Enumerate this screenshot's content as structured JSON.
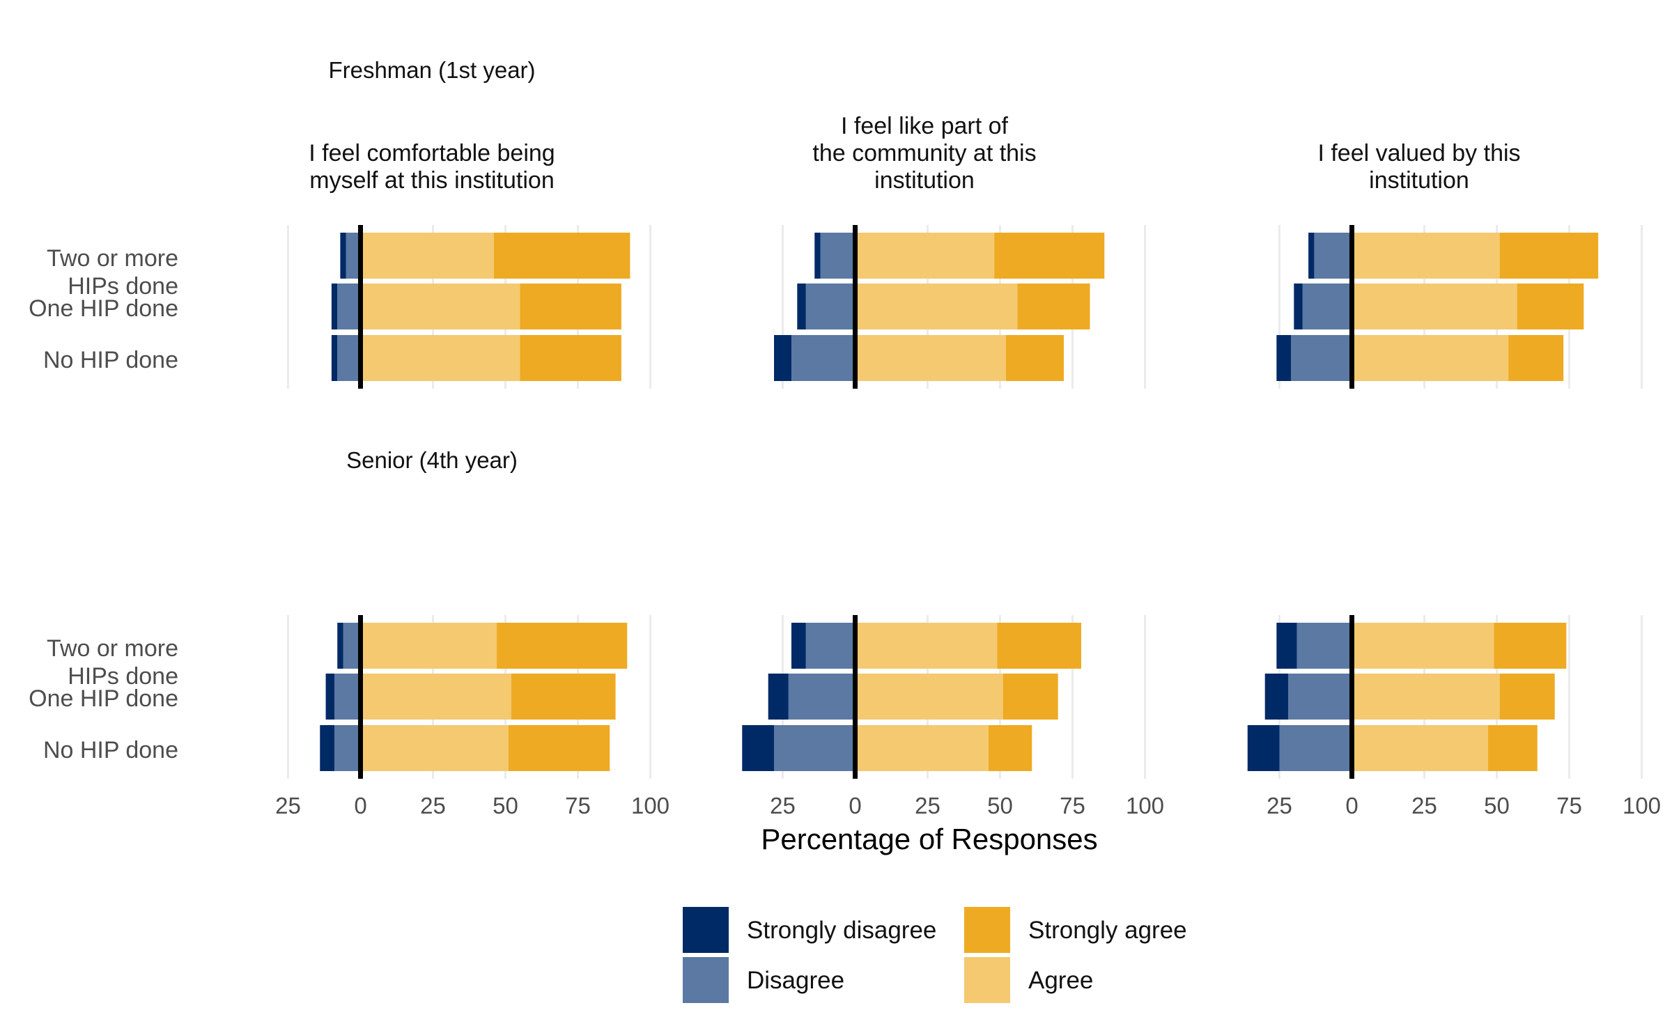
{
  "chart_data": {
    "type": "bar",
    "orientation": "horizontal-diverging",
    "xlabel": "Percentage of Responses",
    "colors": {
      "Strongly disagree": "#002a66",
      "Disagree": "#5b79a2",
      "Agree": "#f4c970",
      "Strongly agree": "#eeaa22"
    },
    "legend": {
      "position": "bottom",
      "entries": [
        "Strongly disagree",
        "Disagree",
        "Strongly agree",
        "Agree"
      ]
    },
    "categories": [
      "Two or more HIPs done",
      "One HIP done",
      "No HIP done"
    ],
    "category_lines": [
      [
        "Two or more",
        "HIPs done"
      ],
      [
        "One HIP done"
      ],
      [
        "No HIP done"
      ]
    ],
    "rows": [
      "Freshman (1st year)",
      "Senior (4th year)"
    ],
    "columns": [
      [
        "I feel comfortable being",
        "myself at this institution"
      ],
      [
        "I feel like part of",
        "the community at this",
        "institution"
      ],
      [
        "I feel valued by this",
        "institution"
      ]
    ],
    "xlim": [
      -25,
      100
    ],
    "grid": true,
    "panels": [
      {
        "row": 0,
        "col": 0,
        "xticks": [
          "25",
          "0",
          "25",
          "50",
          "75",
          "100"
        ],
        "xtick_values": [
          -25,
          0,
          25,
          50,
          75,
          100
        ],
        "data": [
          {
            "strongly_disagree": 2,
            "disagree": 5,
            "agree": 46,
            "strongly_agree": 47
          },
          {
            "strongly_disagree": 2,
            "disagree": 8,
            "agree": 55,
            "strongly_agree": 35
          },
          {
            "strongly_disagree": 2,
            "disagree": 8,
            "agree": 55,
            "strongly_agree": 35
          }
        ]
      },
      {
        "row": 0,
        "col": 1,
        "xticks": [
          "25",
          "0",
          "25",
          "50",
          "75",
          "100"
        ],
        "xtick_values": [
          -25,
          0,
          25,
          50,
          75,
          100
        ],
        "data": [
          {
            "strongly_disagree": 2,
            "disagree": 12,
            "agree": 48,
            "strongly_agree": 38
          },
          {
            "strongly_disagree": 3,
            "disagree": 17,
            "agree": 56,
            "strongly_agree": 25
          },
          {
            "strongly_disagree": 6,
            "disagree": 22,
            "agree": 52,
            "strongly_agree": 20
          }
        ]
      },
      {
        "row": 0,
        "col": 2,
        "xticks": [
          "25",
          "0",
          "25",
          "50",
          "75",
          "100"
        ],
        "xtick_values": [
          -25,
          0,
          25,
          50,
          75,
          100
        ],
        "data": [
          {
            "strongly_disagree": 2,
            "disagree": 13,
            "agree": 51,
            "strongly_agree": 34
          },
          {
            "strongly_disagree": 3,
            "disagree": 17,
            "agree": 57,
            "strongly_agree": 23
          },
          {
            "strongly_disagree": 5,
            "disagree": 21,
            "agree": 54,
            "strongly_agree": 19
          }
        ]
      },
      {
        "row": 1,
        "col": 0,
        "xticks": [
          "25",
          "0",
          "25",
          "50",
          "75",
          "100"
        ],
        "xtick_values": [
          -25,
          0,
          25,
          50,
          75,
          100
        ],
        "data": [
          {
            "strongly_disagree": 2,
            "disagree": 6,
            "agree": 47,
            "strongly_agree": 45
          },
          {
            "strongly_disagree": 3,
            "disagree": 9,
            "agree": 52,
            "strongly_agree": 36
          },
          {
            "strongly_disagree": 5,
            "disagree": 9,
            "agree": 51,
            "strongly_agree": 35
          }
        ]
      },
      {
        "row": 1,
        "col": 1,
        "xticks": [
          "25",
          "0",
          "25",
          "50",
          "75",
          "100"
        ],
        "xtick_values": [
          -25,
          0,
          25,
          50,
          75,
          100
        ],
        "data": [
          {
            "strongly_disagree": 5,
            "disagree": 17,
            "agree": 49,
            "strongly_agree": 29
          },
          {
            "strongly_disagree": 7,
            "disagree": 23,
            "agree": 51,
            "strongly_agree": 19
          },
          {
            "strongly_disagree": 11,
            "disagree": 28,
            "agree": 46,
            "strongly_agree": 15
          }
        ]
      },
      {
        "row": 1,
        "col": 2,
        "xticks": [
          "25",
          "0",
          "25",
          "50",
          "75",
          "100"
        ],
        "xtick_values": [
          -25,
          0,
          25,
          50,
          75,
          100
        ],
        "data": [
          {
            "strongly_disagree": 7,
            "disagree": 19,
            "agree": 49,
            "strongly_agree": 25
          },
          {
            "strongly_disagree": 8,
            "disagree": 22,
            "agree": 51,
            "strongly_agree": 19
          },
          {
            "strongly_disagree": 11,
            "disagree": 25,
            "agree": 47,
            "strongly_agree": 17
          }
        ]
      }
    ]
  }
}
